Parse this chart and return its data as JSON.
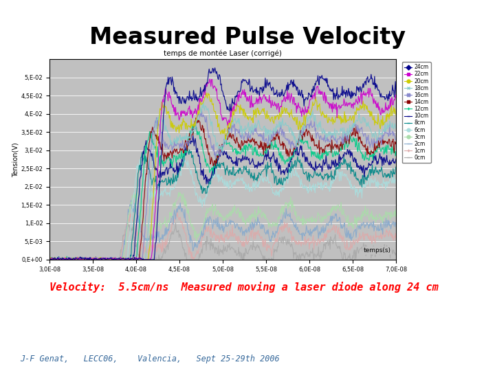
{
  "title": "Measured Pulse Velocity",
  "chart_title": "temps de montée Laser (corrigé)",
  "ylabel": "Tension(V)",
  "xlabel": "temps(s)",
  "velocity_text": "Velocity:  5.5cm/ns  Measured moving a laser diode along 24 cm",
  "credit_text": "J-F Genat,   LECC06,    Valencia,   Sept 25-29th 2006",
  "bg_color": "#ffffff",
  "chart_bg_color": "#c0c0c0",
  "legend_labels": [
    "24cm",
    "22cm",
    "20cm",
    "18cm",
    "16cm",
    "14cm",
    "12cm",
    "10cm",
    "8cm",
    "6cm",
    "3cm",
    "2cm",
    "1cm",
    "0cm"
  ],
  "legend_colors": [
    "#00008b",
    "#cc00cc",
    "#cccc00",
    "#88cccc",
    "#8888cc",
    "#8b0000",
    "#00cc88",
    "#000088",
    "#008888",
    "#aadddd",
    "#aaddaa",
    "#88aacc",
    "#ddaaaa",
    "#aaaaaa"
  ],
  "legend_markers": [
    "diamond",
    "square",
    "circle",
    "x",
    "X",
    "square",
    "plus",
    "minus",
    "minus",
    "circle",
    "circle",
    "minus",
    "plus",
    "minus"
  ],
  "xmin": 3e-08,
  "xmax": 7e-08,
  "ymin": 0.0,
  "ymax": 0.055,
  "distances_cm": [
    0,
    1,
    2,
    3,
    6,
    8,
    10,
    12,
    14,
    16,
    18,
    20,
    22,
    24
  ],
  "series_colors": [
    "#aaaaaa",
    "#ddaaaa",
    "#88aacc",
    "#aaddaa",
    "#aadddd",
    "#008888",
    "#000088",
    "#00cc88",
    "#8b0000",
    "#8888cc",
    "#88cccc",
    "#cccc00",
    "#cc00cc",
    "#00008b"
  ]
}
